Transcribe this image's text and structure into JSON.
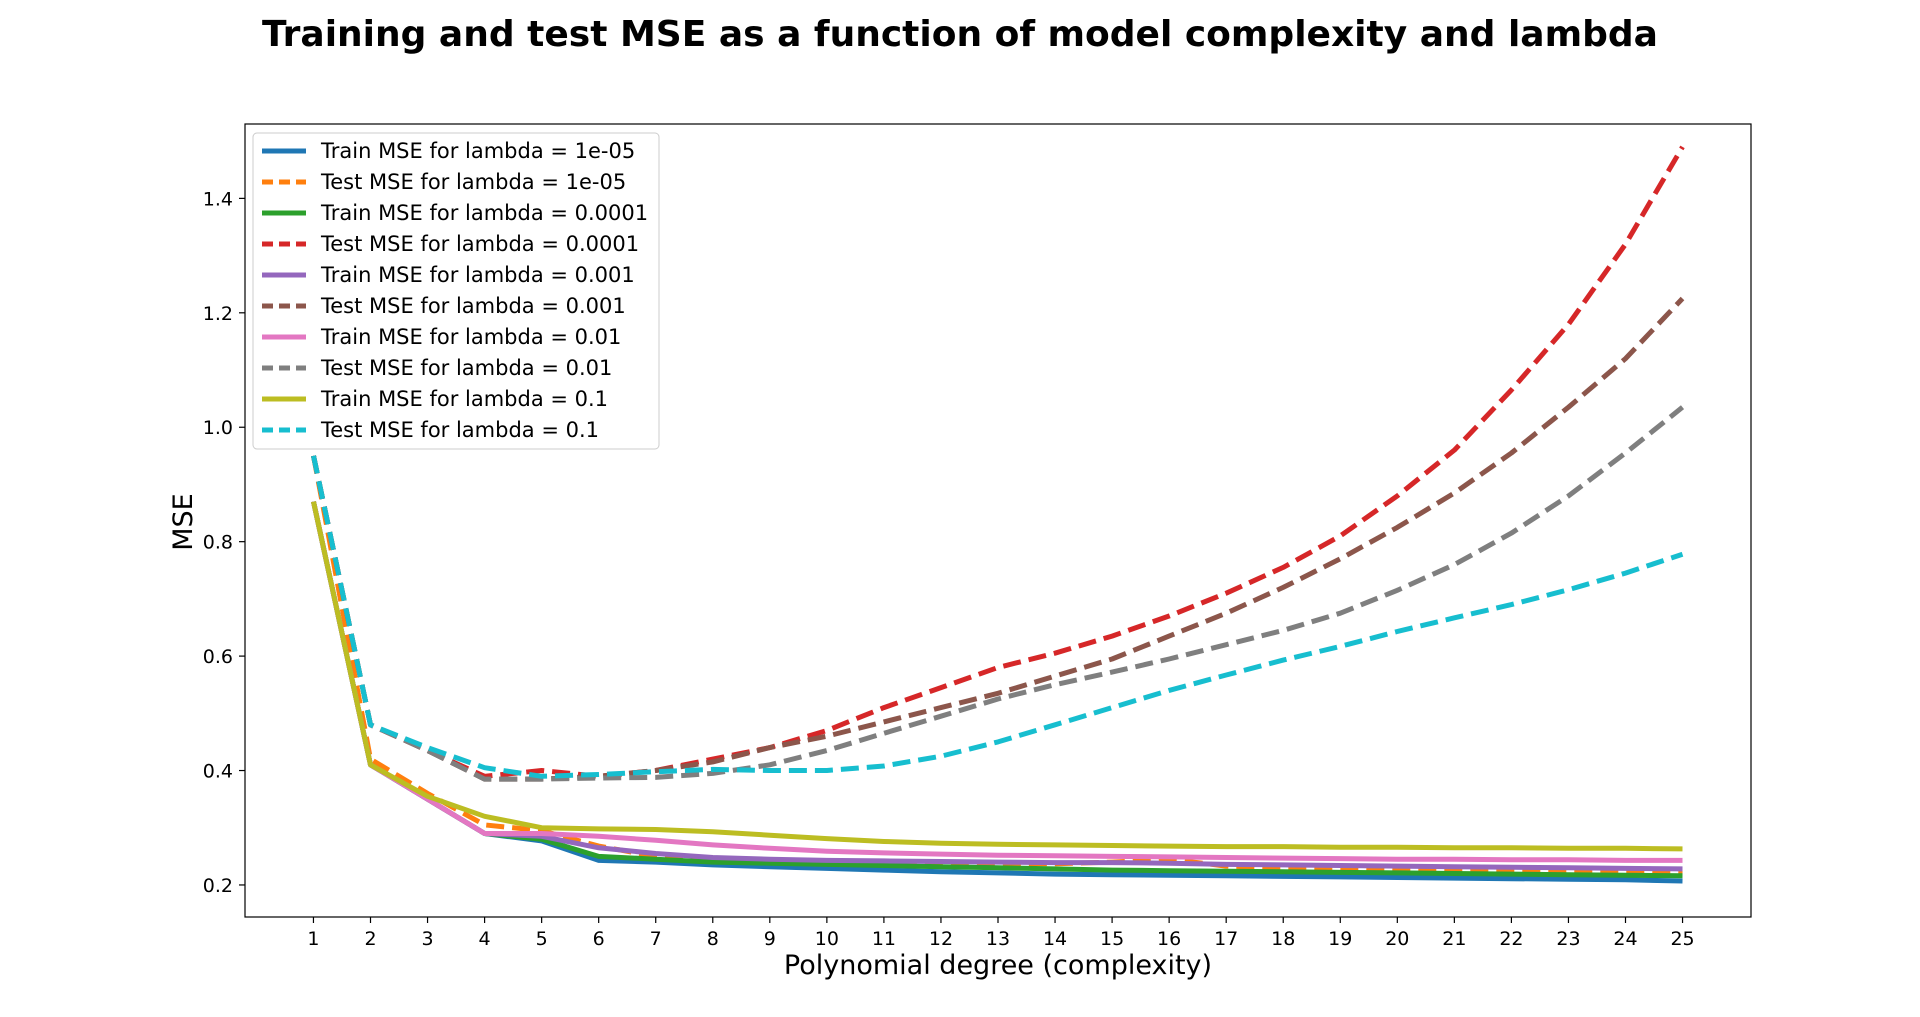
{
  "chart_data": {
    "type": "line",
    "title": "Training and test MSE as a function of model complexity and lambda",
    "xlabel": "Polynomial degree (complexity)",
    "ylabel": "MSE",
    "xlim": [
      -0.2,
      26.2
    ],
    "ylim": [
      0.144,
      1.53
    ],
    "x": [
      1,
      2,
      3,
      4,
      5,
      6,
      7,
      8,
      9,
      10,
      11,
      12,
      13,
      14,
      15,
      16,
      17,
      18,
      19,
      20,
      21,
      22,
      23,
      24,
      25
    ],
    "x_ticks": [
      "1",
      "2",
      "3",
      "4",
      "5",
      "6",
      "7",
      "8",
      "9",
      "10",
      "11",
      "12",
      "13",
      "14",
      "15",
      "16",
      "17",
      "18",
      "19",
      "20",
      "21",
      "22",
      "23",
      "24",
      "25"
    ],
    "y_ticks": [
      {
        "value": 0.2,
        "label": "0.2"
      },
      {
        "value": 0.4,
        "label": "0.4"
      },
      {
        "value": 0.6,
        "label": "0.6"
      },
      {
        "value": 0.8,
        "label": "0.8"
      },
      {
        "value": 1.0,
        "label": "1.0"
      },
      {
        "value": 1.2,
        "label": "1.2"
      },
      {
        "value": 1.4,
        "label": "1.4"
      }
    ],
    "grid": false,
    "legend_position": "upper-left",
    "series": [
      {
        "name": "Train MSE for lambda = 1e-05",
        "color": "#1f77b4",
        "style": "solid",
        "values": [
          0.87,
          0.41,
          0.35,
          0.29,
          0.277,
          0.243,
          0.24,
          0.235,
          0.232,
          0.229,
          0.226,
          0.223,
          0.221,
          0.219,
          0.218,
          0.217,
          0.216,
          0.215,
          0.214,
          0.213,
          0.212,
          0.211,
          0.21,
          0.209,
          0.207
        ]
      },
      {
        "name": "Test MSE for lambda = 1e-05",
        "color": "#ff7f0e",
        "style": "dashed",
        "values": [
          0.95,
          0.42,
          0.36,
          0.305,
          0.295,
          0.268,
          0.25,
          0.245,
          0.243,
          0.241,
          0.24,
          0.239,
          0.238,
          0.237,
          0.24,
          0.245,
          0.233,
          0.23,
          0.228,
          0.226,
          0.225,
          0.223,
          0.222,
          0.221,
          0.22
        ]
      },
      {
        "name": "Train MSE for lambda = 0.0001",
        "color": "#2ca02c",
        "style": "solid",
        "values": [
          0.87,
          0.41,
          0.35,
          0.29,
          0.28,
          0.25,
          0.245,
          0.24,
          0.238,
          0.236,
          0.234,
          0.232,
          0.23,
          0.228,
          0.226,
          0.225,
          0.224,
          0.223,
          0.222,
          0.221,
          0.22,
          0.219,
          0.218,
          0.217,
          0.216
        ]
      },
      {
        "name": "Test MSE for lambda = 0.0001",
        "color": "#d62728",
        "style": "dashed",
        "values": [
          0.95,
          0.48,
          0.435,
          0.39,
          0.4,
          0.39,
          0.4,
          0.42,
          0.44,
          0.47,
          0.51,
          0.545,
          0.58,
          0.605,
          0.635,
          0.67,
          0.71,
          0.755,
          0.81,
          0.88,
          0.96,
          1.065,
          1.18,
          1.32,
          1.49
        ]
      },
      {
        "name": "Train MSE for lambda = 0.001",
        "color": "#9467bd",
        "style": "solid",
        "values": [
          0.87,
          0.41,
          0.35,
          0.29,
          0.285,
          0.265,
          0.255,
          0.248,
          0.245,
          0.243,
          0.242,
          0.241,
          0.24,
          0.239,
          0.239,
          0.238,
          0.236,
          0.235,
          0.234,
          0.233,
          0.232,
          0.231,
          0.23,
          0.229,
          0.228
        ]
      },
      {
        "name": "Test MSE for lambda = 0.001",
        "color": "#8c564b",
        "style": "dashed",
        "values": [
          0.95,
          0.48,
          0.435,
          0.385,
          0.385,
          0.39,
          0.4,
          0.415,
          0.44,
          0.46,
          0.485,
          0.51,
          0.535,
          0.565,
          0.595,
          0.635,
          0.675,
          0.72,
          0.77,
          0.825,
          0.885,
          0.955,
          1.035,
          1.12,
          1.225
        ]
      },
      {
        "name": "Train MSE for lambda = 0.01",
        "color": "#e377c2",
        "style": "solid",
        "values": [
          0.87,
          0.41,
          0.35,
          0.29,
          0.29,
          0.285,
          0.278,
          0.27,
          0.264,
          0.259,
          0.256,
          0.254,
          0.252,
          0.251,
          0.25,
          0.249,
          0.248,
          0.247,
          0.246,
          0.245,
          0.245,
          0.244,
          0.244,
          0.243,
          0.243
        ]
      },
      {
        "name": "Test MSE for lambda = 0.01",
        "color": "#7f7f7f",
        "style": "dashed",
        "values": [
          0.95,
          0.48,
          0.435,
          0.385,
          0.385,
          0.387,
          0.388,
          0.395,
          0.41,
          0.435,
          0.465,
          0.495,
          0.525,
          0.55,
          0.572,
          0.595,
          0.62,
          0.645,
          0.675,
          0.715,
          0.76,
          0.815,
          0.88,
          0.955,
          1.035
        ]
      },
      {
        "name": "Train MSE for lambda = 0.1",
        "color": "#bcbd22",
        "style": "solid",
        "values": [
          0.87,
          0.41,
          0.355,
          0.32,
          0.3,
          0.298,
          0.297,
          0.293,
          0.287,
          0.281,
          0.276,
          0.273,
          0.271,
          0.27,
          0.269,
          0.268,
          0.267,
          0.267,
          0.266,
          0.266,
          0.265,
          0.265,
          0.264,
          0.264,
          0.263
        ]
      },
      {
        "name": "Test MSE for lambda = 0.1",
        "color": "#17becf",
        "style": "dashed",
        "values": [
          0.95,
          0.48,
          0.44,
          0.405,
          0.39,
          0.393,
          0.398,
          0.402,
          0.4,
          0.4,
          0.408,
          0.425,
          0.45,
          0.48,
          0.51,
          0.54,
          0.567,
          0.593,
          0.617,
          0.643,
          0.667,
          0.69,
          0.716,
          0.745,
          0.778
        ]
      }
    ]
  }
}
